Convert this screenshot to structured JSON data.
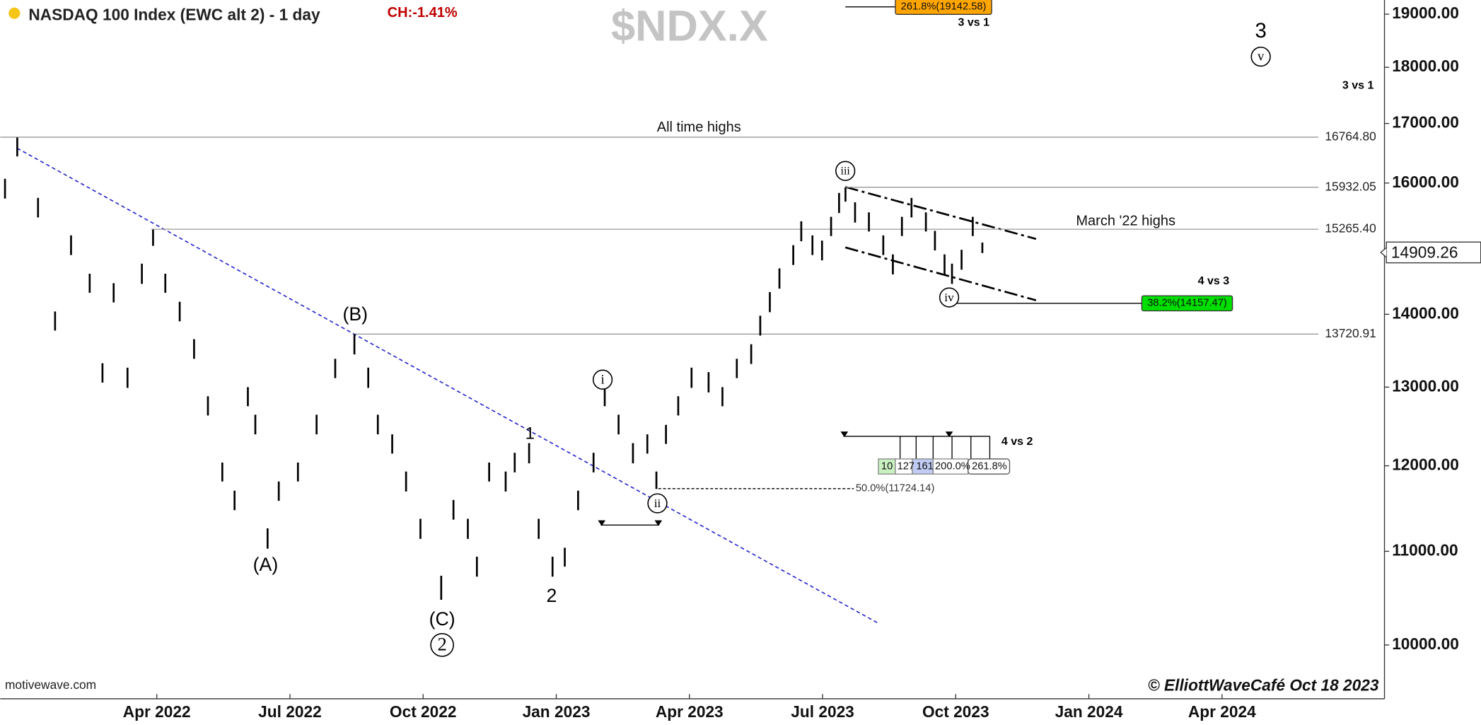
{
  "header": {
    "title": "NASDAQ 100 Index (EWC alt 2) - 1 day",
    "change": "CH:-1.41%",
    "symbol": "$NDX.X",
    "source": "motivewave.com",
    "credit": "© ElliottWaveCafé Oct 18 2023"
  },
  "chart_data": {
    "type": "ohlc",
    "color": "#000000",
    "log_scale": true,
    "x": [
      2021.965,
      2021.988,
      2022.027,
      2022.059,
      2022.089,
      2022.124,
      2022.148,
      2022.169,
      2022.195,
      2022.222,
      2022.243,
      2022.266,
      2022.293,
      2022.32,
      2022.346,
      2022.373,
      2022.396,
      2022.421,
      2022.435,
      2022.458,
      2022.479,
      2022.515,
      2022.55,
      2022.585,
      2022.621,
      2022.647,
      2022.665,
      2022.692,
      2022.718,
      2022.745,
      2022.784,
      2022.807,
      2022.834,
      2022.851,
      2022.874,
      2022.905,
      2022.922,
      2022.949,
      2022.967,
      2022.993,
      2023.016,
      2023.041,
      2023.07,
      2023.091,
      2023.117,
      2023.144,
      2023.171,
      2023.188,
      2023.206,
      2023.229,
      2023.254,
      2023.286,
      2023.312,
      2023.339,
      2023.366,
      2023.383,
      2023.401,
      2023.419,
      2023.445,
      2023.46,
      2023.481,
      2023.499,
      2023.516,
      2023.531,
      2023.543,
      2023.561,
      2023.587,
      2023.614,
      2023.632,
      2023.649,
      2023.667,
      2023.694,
      2023.711,
      2023.729,
      2023.743,
      2023.761,
      2023.782,
      2023.8
    ],
    "high": [
      16070,
      16760,
      15760,
      14040,
      15170,
      14590,
      13320,
      14450,
      13260,
      14740,
      15260,
      14590,
      14180,
      13650,
      12880,
      12040,
      11700,
      13000,
      12640,
      11260,
      11810,
      12040,
      12640,
      13380,
      13720,
      13260,
      12640,
      12390,
      11930,
      11370,
      10730,
      11590,
      11370,
      10940,
      12040,
      11930,
      12160,
      12280,
      11370,
      10940,
      11040,
      11700,
      12160,
      13000,
      12640,
      12280,
      12390,
      11930,
      12510,
      12880,
      13260,
      13200,
      13000,
      13380,
      13580,
      13980,
      14320,
      14670,
      15020,
      15390,
      15170,
      15090,
      15460,
      15840,
      15930,
      15690,
      15530,
      15170,
      14880,
      15460,
      15760,
      15530,
      15240,
      14880,
      14740,
      14950,
      15460,
      15060
    ],
    "low": [
      15750,
      16440,
      15450,
      13770,
      14870,
      14310,
      13060,
      14170,
      12990,
      14440,
      15010,
      14310,
      13900,
      13380,
      12630,
      11810,
      11470,
      12750,
      12390,
      11030,
      11580,
      11810,
      12390,
      13120,
      13440,
      12990,
      12390,
      12150,
      11690,
      11140,
      10470,
      11360,
      11140,
      10720,
      11810,
      11690,
      11920,
      12030,
      11140,
      10720,
      10830,
      11470,
      11920,
      12750,
      12390,
      12030,
      12150,
      11720,
      12270,
      12630,
      12990,
      12930,
      12750,
      13120,
      13310,
      13700,
      14030,
      14370,
      14720,
      15080,
      14870,
      14790,
      15160,
      15520,
      15700,
      15370,
      15230,
      14870,
      14580,
      15160,
      15450,
      15230,
      14940,
      14580,
      14440,
      14650,
      15160,
      14900
    ],
    "xlim": [
      2021.956,
      2024.555
    ],
    "ylim": [
      9467,
      19276
    ],
    "xticks": [
      {
        "value": 2022.25,
        "label": "Apr 2022"
      },
      {
        "value": 2022.5,
        "label": "Jul 2022"
      },
      {
        "value": 2022.75,
        "label": "Oct 2022"
      },
      {
        "value": 2023.0,
        "label": "Jan 2023"
      },
      {
        "value": 2023.25,
        "label": "Apr 2023"
      },
      {
        "value": 2023.5,
        "label": "Jul 2023"
      },
      {
        "value": 2023.75,
        "label": "Oct 2023"
      },
      {
        "value": 2024.0,
        "label": "Jan 2024"
      },
      {
        "value": 2024.25,
        "label": "Apr 2024"
      }
    ],
    "yticks": [
      {
        "value": 10000,
        "label": "10000.00"
      },
      {
        "value": 11000,
        "label": "11000.00"
      },
      {
        "value": 12000,
        "label": "12000.00"
      },
      {
        "value": 13000,
        "label": "13000.00"
      },
      {
        "value": 14000,
        "label": "14000.00"
      },
      {
        "value": 16000,
        "label": "16000.00"
      },
      {
        "value": 17000,
        "label": "17000.00"
      },
      {
        "value": 18000,
        "label": "18000.00"
      },
      {
        "value": 19000,
        "label": "19000.00"
      }
    ],
    "last_price": 14909.26,
    "levels": [
      {
        "value": 16764.8,
        "label": "16764.80",
        "note": "All time highs"
      },
      {
        "value": 15932.05,
        "label": "15932.05"
      },
      {
        "value": 15265.4,
        "label": "15265.40",
        "note": "March '22 highs"
      },
      {
        "value": 13720.91,
        "label": "13720.91"
      }
    ],
    "fib_levels": [
      {
        "value": 19142.58,
        "label": "261.8%(19142.58)",
        "color": "#ffa500"
      },
      {
        "value": 14157.47,
        "label": "38.2%(14157.47)",
        "color": "#00e000"
      },
      {
        "value": 11724.14,
        "label": "50.0%(11724.14)"
      }
    ],
    "wave_labels": [
      "(A)",
      "(B)",
      "(C)",
      "2",
      "1",
      "2",
      "i",
      "ii",
      "iii",
      "iv",
      "v",
      "3"
    ],
    "projection_labels": [
      "3 vs 1",
      "3 vs 1",
      "4 vs 3",
      "4 vs 2"
    ],
    "fib_widget": [
      "10",
      "127",
      "161",
      "200.0%",
      "261.8%"
    ]
  }
}
